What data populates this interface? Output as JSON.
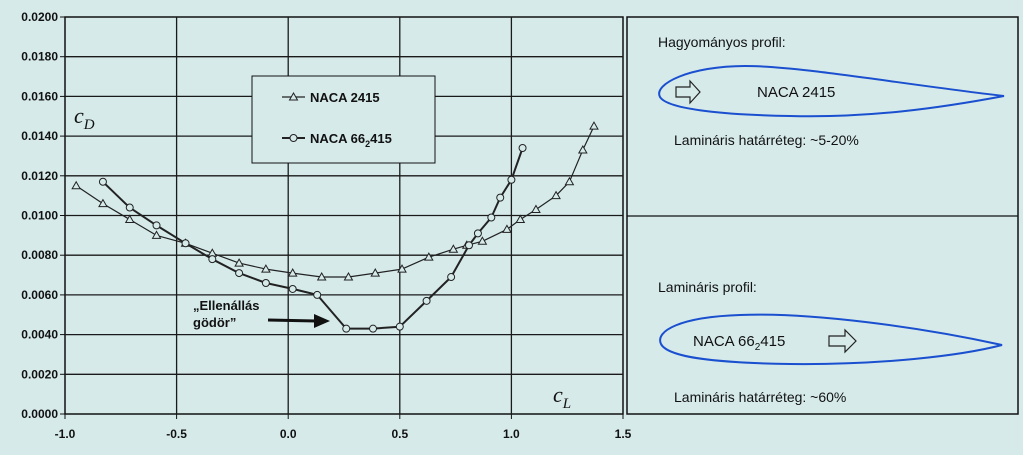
{
  "chart_data": {
    "type": "line",
    "xlabel": "c_L",
    "ylabel": "c_D",
    "xlim": [
      -1.0,
      1.5
    ],
    "ylim": [
      0.0,
      0.02
    ],
    "x_ticks": [
      "-1.0",
      "-0.5",
      "0.0",
      "0.5",
      "1.0",
      "1.5"
    ],
    "y_ticks": [
      "0.0000",
      "0.0020",
      "0.0040",
      "0.0060",
      "0.0080",
      "0.0100",
      "0.0120",
      "0.0140",
      "0.0160",
      "0.0180",
      "0.0200"
    ],
    "x_tick_values": [
      -1.0,
      -0.5,
      0.0,
      0.5,
      1.0,
      1.5
    ],
    "y_tick_values": [
      0.0,
      0.002,
      0.004,
      0.006,
      0.008,
      0.01,
      0.012,
      0.014,
      0.016,
      0.018,
      0.02
    ],
    "grid": true,
    "legend_position": "top-center",
    "series": [
      {
        "name": "NACA 2415",
        "marker": "triangle",
        "stroke_width": 1.2,
        "x": [
          -0.95,
          -0.83,
          -0.71,
          -0.59,
          -0.46,
          -0.34,
          -0.22,
          -0.1,
          0.02,
          0.15,
          0.27,
          0.39,
          0.51,
          0.63,
          0.74,
          0.8,
          0.87,
          0.98,
          1.04,
          1.11,
          1.2,
          1.26,
          1.32,
          1.37
        ],
        "y": [
          0.0115,
          0.0106,
          0.0098,
          0.009,
          0.0086,
          0.0081,
          0.0076,
          0.0073,
          0.0071,
          0.0069,
          0.0069,
          0.0071,
          0.0073,
          0.0079,
          0.0083,
          0.0085,
          0.0087,
          0.0093,
          0.0098,
          0.0103,
          0.011,
          0.0117,
          0.0133,
          0.0145
        ]
      },
      {
        "name": "NACA 66₂415",
        "marker": "circle",
        "stroke_width": 2,
        "x": [
          -0.83,
          -0.71,
          -0.59,
          -0.46,
          -0.34,
          -0.22,
          -0.1,
          0.02,
          0.13,
          0.26,
          0.38,
          0.5,
          0.62,
          0.73,
          0.81,
          0.85,
          0.91,
          0.95,
          1.0,
          1.05
        ],
        "y": [
          0.0117,
          0.0104,
          0.0095,
          0.0086,
          0.0078,
          0.0071,
          0.0066,
          0.0063,
          0.006,
          0.0043,
          0.0043,
          0.0044,
          0.0057,
          0.0069,
          0.0085,
          0.0091,
          0.0099,
          0.0109,
          0.0118,
          0.0134
        ]
      }
    ],
    "legend": [
      "NACA 2415",
      "NACA 66₂415"
    ],
    "annotation": {
      "line1": "„Ellenállás",
      "line2": "gödör”"
    }
  },
  "axis_symbols": {
    "y_main": "c",
    "y_sub": "D",
    "x_main": "c",
    "x_sub": "L"
  },
  "legend_labels": {
    "s1": "NACA 2415",
    "s2_prefix": "NACA 66",
    "s2_sub": "2",
    "s2_suffix": "415"
  },
  "panels": {
    "top": {
      "title": "Hagyományos profil:",
      "profile_label": "NACA 2415",
      "note": "Lamináris határréteg: ~5-20%"
    },
    "bottom": {
      "title": "Lamináris profil:",
      "profile_label_prefix": "NACA 66",
      "profile_label_sub": "2",
      "profile_label_suffix": "415",
      "note": "Lamináris határréteg: ~60%"
    }
  },
  "colors": {
    "background": "#d6eaea",
    "grid": "#1a1a1a",
    "series": "#222222",
    "airfoil": "#1a4fcf",
    "panel_border": "#111111"
  }
}
